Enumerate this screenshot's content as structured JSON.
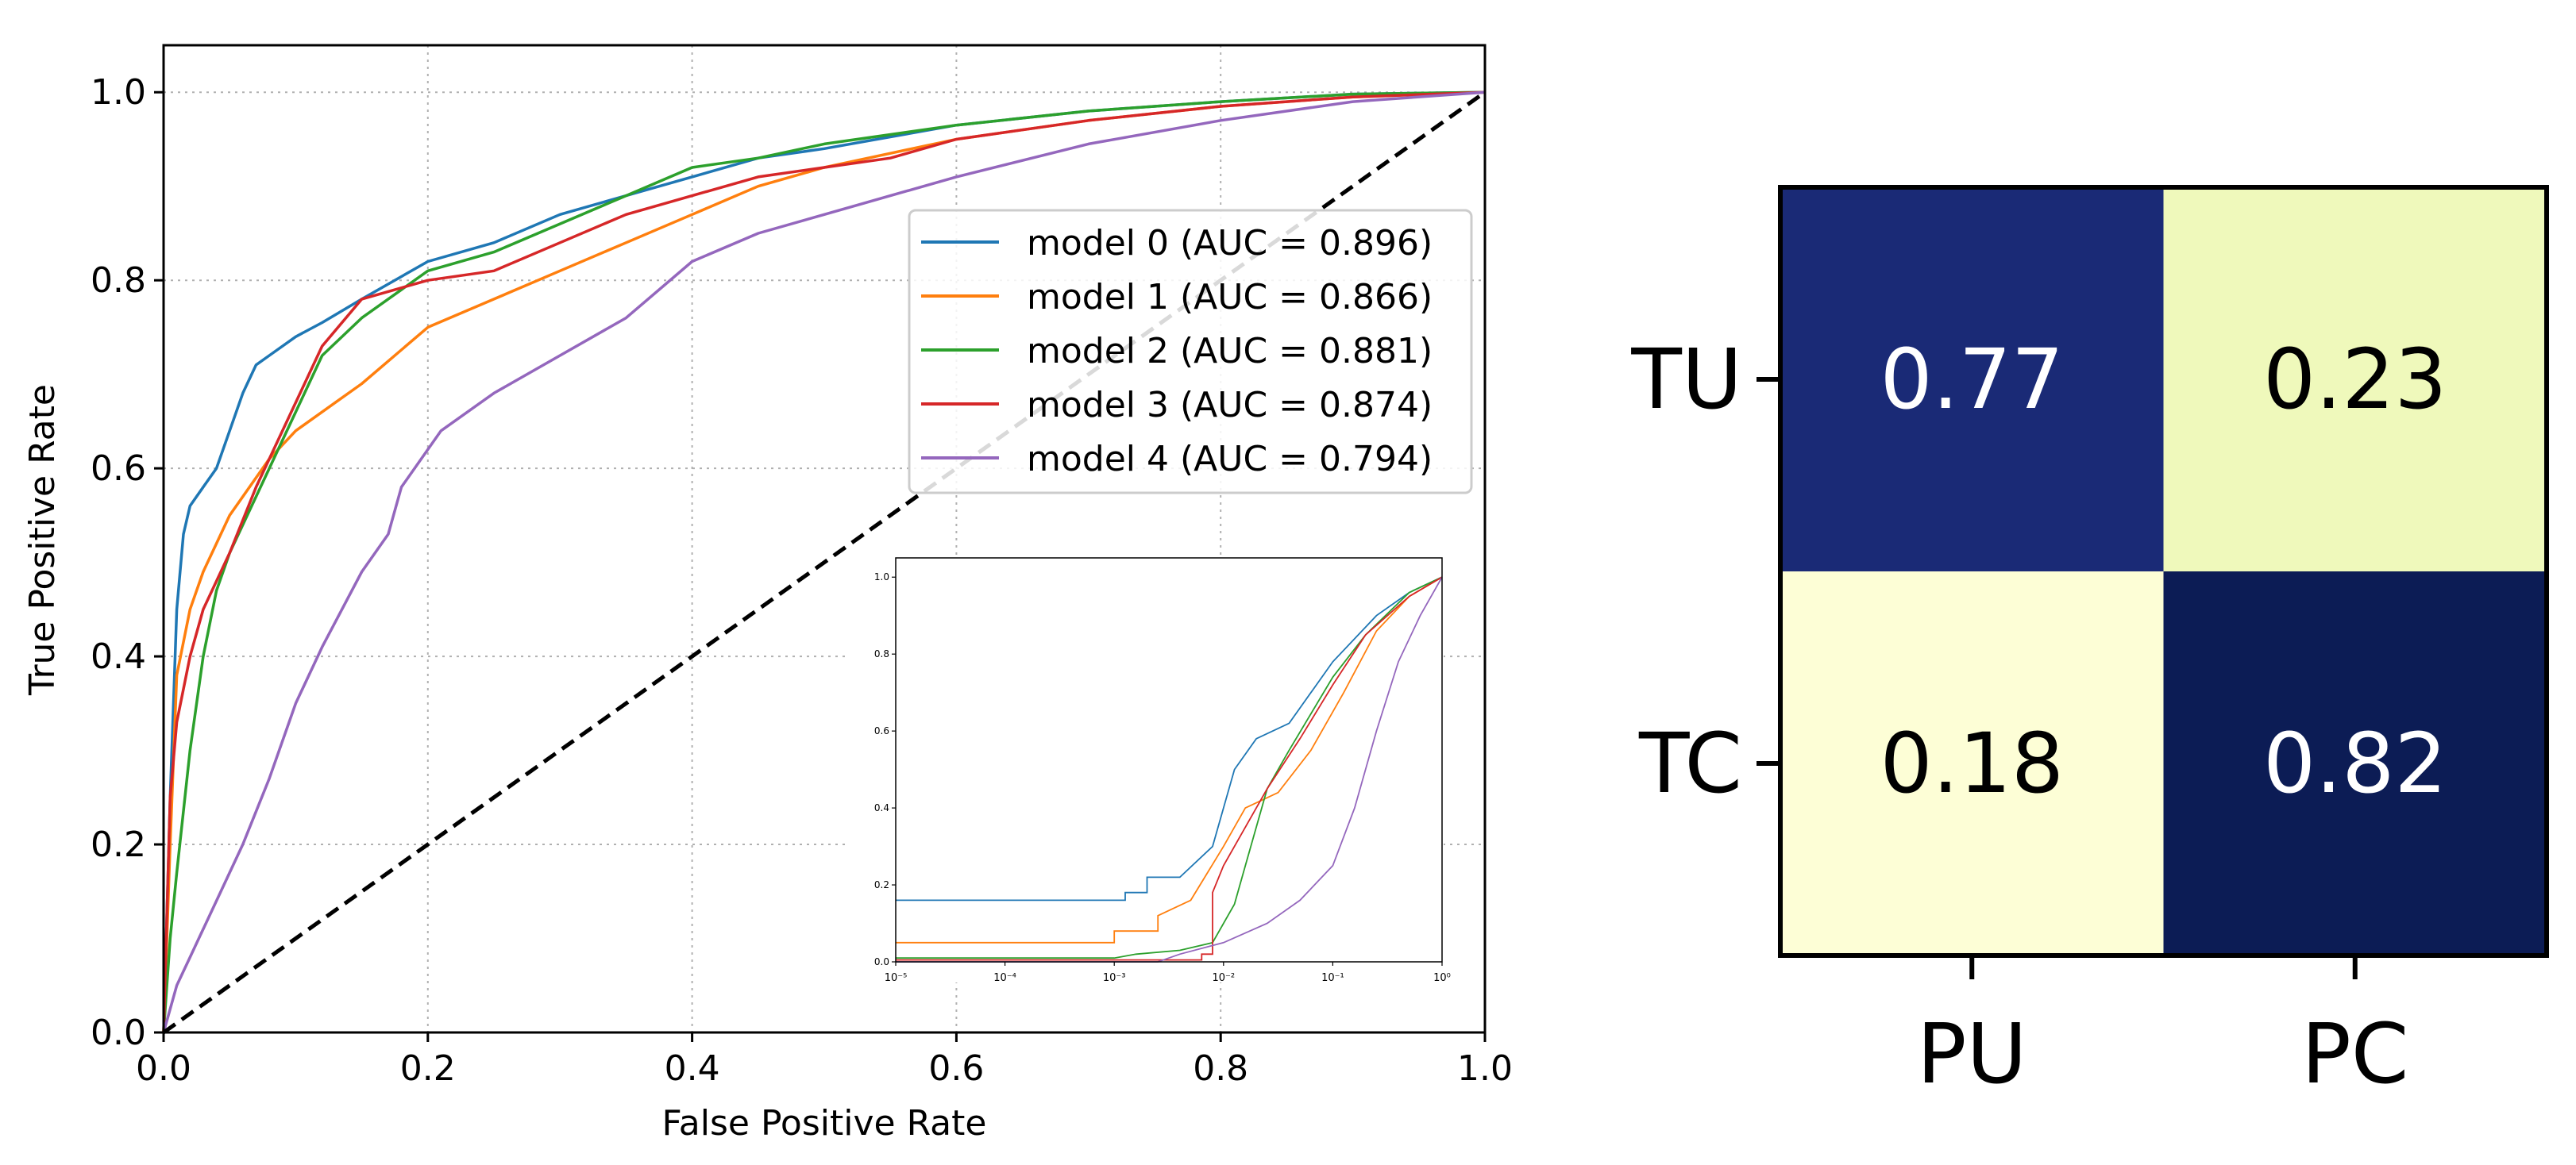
{
  "chart_data": [
    {
      "type": "line",
      "title": "",
      "xlabel": "False Positive Rate",
      "ylabel": "True Positive Rate",
      "xlim": [
        0.0,
        1.0
      ],
      "ylim": [
        0.0,
        1.05
      ],
      "xticks": [
        0.0,
        0.2,
        0.4,
        0.6,
        0.8,
        1.0
      ],
      "xtick_labels": [
        "0.0",
        "0.2",
        "0.4",
        "0.6",
        "0.8",
        "1.0"
      ],
      "yticks": [
        0.0,
        0.2,
        0.4,
        0.6,
        0.8,
        1.0
      ],
      "ytick_labels": [
        "0.0",
        "0.2",
        "0.4",
        "0.6",
        "0.8",
        "1.0"
      ],
      "grid": true,
      "legend_position": "center-right",
      "series": [
        {
          "name": "model 0 (AUC = 0.896)",
          "color": "#1f77b4",
          "points": [
            [
              0,
              0
            ],
            [
              0.005,
              0.25
            ],
            [
              0.01,
              0.45
            ],
            [
              0.015,
              0.53
            ],
            [
              0.02,
              0.56
            ],
            [
              0.03,
              0.58
            ],
            [
              0.04,
              0.6
            ],
            [
              0.05,
              0.64
            ],
            [
              0.06,
              0.68
            ],
            [
              0.07,
              0.71
            ],
            [
              0.08,
              0.72
            ],
            [
              0.1,
              0.74
            ],
            [
              0.12,
              0.755
            ],
            [
              0.15,
              0.78
            ],
            [
              0.2,
              0.82
            ],
            [
              0.25,
              0.84
            ],
            [
              0.3,
              0.87
            ],
            [
              0.35,
              0.89
            ],
            [
              0.4,
              0.91
            ],
            [
              0.45,
              0.93
            ],
            [
              0.5,
              0.94
            ],
            [
              0.6,
              0.965
            ],
            [
              0.7,
              0.98
            ],
            [
              0.8,
              0.99
            ],
            [
              0.9,
              0.998
            ],
            [
              1.0,
              1.0
            ]
          ]
        },
        {
          "name": "model 1 (AUC = 0.866)",
          "color": "#ff7f0e",
          "points": [
            [
              0,
              0
            ],
            [
              0.005,
              0.2
            ],
            [
              0.01,
              0.38
            ],
            [
              0.02,
              0.45
            ],
            [
              0.03,
              0.49
            ],
            [
              0.05,
              0.55
            ],
            [
              0.08,
              0.61
            ],
            [
              0.1,
              0.64
            ],
            [
              0.13,
              0.67
            ],
            [
              0.15,
              0.69
            ],
            [
              0.2,
              0.75
            ],
            [
              0.25,
              0.78
            ],
            [
              0.3,
              0.81
            ],
            [
              0.35,
              0.84
            ],
            [
              0.4,
              0.87
            ],
            [
              0.45,
              0.9
            ],
            [
              0.5,
              0.92
            ],
            [
              0.55,
              0.935
            ],
            [
              0.6,
              0.95
            ],
            [
              0.7,
              0.97
            ],
            [
              0.8,
              0.985
            ],
            [
              0.9,
              0.995
            ],
            [
              1.0,
              1.0
            ]
          ]
        },
        {
          "name": "model 2 (AUC = 0.881)",
          "color": "#2ca02c",
          "points": [
            [
              0,
              0
            ],
            [
              0.005,
              0.1
            ],
            [
              0.01,
              0.17
            ],
            [
              0.02,
              0.3
            ],
            [
              0.03,
              0.4
            ],
            [
              0.04,
              0.47
            ],
            [
              0.05,
              0.51
            ],
            [
              0.07,
              0.57
            ],
            [
              0.1,
              0.66
            ],
            [
              0.12,
              0.72
            ],
            [
              0.15,
              0.76
            ],
            [
              0.2,
              0.81
            ],
            [
              0.25,
              0.83
            ],
            [
              0.3,
              0.86
            ],
            [
              0.35,
              0.89
            ],
            [
              0.4,
              0.92
            ],
            [
              0.45,
              0.93
            ],
            [
              0.5,
              0.945
            ],
            [
              0.6,
              0.965
            ],
            [
              0.7,
              0.98
            ],
            [
              0.8,
              0.99
            ],
            [
              0.9,
              0.998
            ],
            [
              1.0,
              1.0
            ]
          ]
        },
        {
          "name": "model 3 (AUC = 0.874)",
          "color": "#d62728",
          "points": [
            [
              0,
              0
            ],
            [
              0.005,
              0.25
            ],
            [
              0.01,
              0.33
            ],
            [
              0.02,
              0.4
            ],
            [
              0.03,
              0.45
            ],
            [
              0.05,
              0.51
            ],
            [
              0.07,
              0.58
            ],
            [
              0.1,
              0.67
            ],
            [
              0.12,
              0.73
            ],
            [
              0.15,
              0.78
            ],
            [
              0.2,
              0.8
            ],
            [
              0.25,
              0.81
            ],
            [
              0.3,
              0.84
            ],
            [
              0.35,
              0.87
            ],
            [
              0.4,
              0.89
            ],
            [
              0.45,
              0.91
            ],
            [
              0.5,
              0.92
            ],
            [
              0.55,
              0.93
            ],
            [
              0.6,
              0.95
            ],
            [
              0.7,
              0.97
            ],
            [
              0.8,
              0.985
            ],
            [
              0.9,
              0.995
            ],
            [
              1.0,
              1.0
            ]
          ]
        },
        {
          "name": "model 4 (AUC = 0.794)",
          "color": "#9467bd",
          "points": [
            [
              0,
              0
            ],
            [
              0.01,
              0.05
            ],
            [
              0.02,
              0.08
            ],
            [
              0.04,
              0.14
            ],
            [
              0.06,
              0.2
            ],
            [
              0.08,
              0.27
            ],
            [
              0.1,
              0.35
            ],
            [
              0.12,
              0.41
            ],
            [
              0.15,
              0.49
            ],
            [
              0.17,
              0.53
            ],
            [
              0.18,
              0.58
            ],
            [
              0.2,
              0.62
            ],
            [
              0.21,
              0.64
            ],
            [
              0.25,
              0.68
            ],
            [
              0.3,
              0.72
            ],
            [
              0.35,
              0.76
            ],
            [
              0.4,
              0.82
            ],
            [
              0.45,
              0.85
            ],
            [
              0.5,
              0.87
            ],
            [
              0.55,
              0.89
            ],
            [
              0.6,
              0.91
            ],
            [
              0.7,
              0.945
            ],
            [
              0.8,
              0.97
            ],
            [
              0.9,
              0.99
            ],
            [
              1.0,
              1.0
            ]
          ]
        }
      ],
      "diagonal": {
        "style": "dashed",
        "color": "#000000",
        "from": [
          0,
          0
        ],
        "to": [
          1,
          1
        ]
      }
    },
    {
      "type": "line",
      "title": "",
      "xscale": "log",
      "xlim": [
        1e-05,
        1.0
      ],
      "ylim": [
        0.0,
        1.05
      ],
      "xtick_labels": [
        "10⁻⁵",
        "10⁻⁴",
        "10⁻³",
        "10⁻²",
        "10⁻¹",
        "10⁰"
      ],
      "xticks": [
        -5,
        -4,
        -3,
        -2,
        -1,
        0
      ],
      "ytick_labels": [
        "0.0",
        "0.2",
        "0.4",
        "0.6",
        "0.8",
        "1.0"
      ],
      "yticks": [
        0.0,
        0.2,
        0.4,
        0.6,
        0.8,
        1.0
      ],
      "placement": "inset, lower-right of ROC axes",
      "series": [
        {
          "name": "model 0",
          "color": "#1f77b4",
          "points_log10x": [
            [
              -5,
              0.16
            ],
            [
              -2.9,
              0.16
            ],
            [
              -2.9,
              0.18
            ],
            [
              -2.7,
              0.18
            ],
            [
              -2.7,
              0.22
            ],
            [
              -2.4,
              0.22
            ],
            [
              -2.1,
              0.3
            ],
            [
              -2.0,
              0.4
            ],
            [
              -1.9,
              0.5
            ],
            [
              -1.7,
              0.58
            ],
            [
              -1.4,
              0.62
            ],
            [
              -1.0,
              0.78
            ],
            [
              -0.6,
              0.9
            ],
            [
              -0.3,
              0.96
            ],
            [
              0,
              1.0
            ]
          ]
        },
        {
          "name": "model 1",
          "color": "#ff7f0e",
          "points_log10x": [
            [
              -5,
              0.05
            ],
            [
              -3.0,
              0.05
            ],
            [
              -3.0,
              0.08
            ],
            [
              -2.6,
              0.08
            ],
            [
              -2.6,
              0.12
            ],
            [
              -2.3,
              0.16
            ],
            [
              -2.0,
              0.3
            ],
            [
              -1.8,
              0.4
            ],
            [
              -1.5,
              0.44
            ],
            [
              -1.2,
              0.55
            ],
            [
              -0.9,
              0.7
            ],
            [
              -0.6,
              0.86
            ],
            [
              -0.3,
              0.95
            ],
            [
              0,
              1.0
            ]
          ]
        },
        {
          "name": "model 2",
          "color": "#2ca02c",
          "points_log10x": [
            [
              -5,
              0.01
            ],
            [
              -3.0,
              0.01
            ],
            [
              -2.8,
              0.02
            ],
            [
              -2.4,
              0.03
            ],
            [
              -2.1,
              0.05
            ],
            [
              -1.9,
              0.15
            ],
            [
              -1.8,
              0.25
            ],
            [
              -1.6,
              0.45
            ],
            [
              -1.4,
              0.55
            ],
            [
              -1.0,
              0.74
            ],
            [
              -0.7,
              0.85
            ],
            [
              -0.3,
              0.96
            ],
            [
              0,
              1.0
            ]
          ]
        },
        {
          "name": "model 3",
          "color": "#d62728",
          "points_log10x": [
            [
              -5,
              0.005
            ],
            [
              -2.2,
              0.005
            ],
            [
              -2.2,
              0.02
            ],
            [
              -2.1,
              0.02
            ],
            [
              -2.1,
              0.18
            ],
            [
              -2.0,
              0.25
            ],
            [
              -1.8,
              0.35
            ],
            [
              -1.6,
              0.45
            ],
            [
              -1.3,
              0.58
            ],
            [
              -1.0,
              0.72
            ],
            [
              -0.7,
              0.85
            ],
            [
              -0.3,
              0.95
            ],
            [
              0,
              1.0
            ]
          ]
        },
        {
          "name": "model 4",
          "color": "#9467bd",
          "points_log10x": [
            [
              -5,
              0.0
            ],
            [
              -2.6,
              0.0
            ],
            [
              -2.4,
              0.02
            ],
            [
              -2.0,
              0.05
            ],
            [
              -1.6,
              0.1
            ],
            [
              -1.3,
              0.16
            ],
            [
              -1.0,
              0.25
            ],
            [
              -0.8,
              0.4
            ],
            [
              -0.6,
              0.6
            ],
            [
              -0.4,
              0.78
            ],
            [
              -0.2,
              0.9
            ],
            [
              0,
              1.0
            ]
          ]
        }
      ]
    },
    {
      "type": "heatmap",
      "title": "",
      "row_labels": [
        "TU",
        "TC"
      ],
      "col_labels": [
        "PU",
        "PC"
      ],
      "values": [
        [
          0.77,
          0.23
        ],
        [
          0.18,
          0.82
        ]
      ],
      "value_labels": [
        [
          "0.77",
          "0.23"
        ],
        [
          "0.18",
          "0.82"
        ]
      ],
      "colormap": "YlGnBu",
      "cell_colors": [
        [
          "#1a2a76",
          "#eff9bb"
        ],
        [
          "#fdfed6",
          "#0c1c55"
        ]
      ],
      "text_colors": [
        [
          "#ffffff",
          "#000000"
        ],
        [
          "#000000",
          "#ffffff"
        ]
      ]
    }
  ]
}
